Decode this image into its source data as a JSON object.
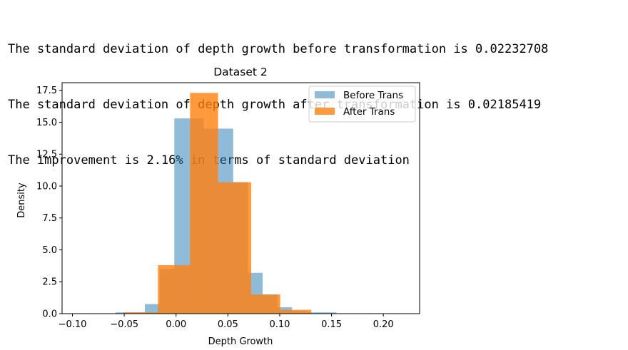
{
  "output": {
    "lines": [
      "The standard deviation of depth growth before transformation is 0.02232708",
      "The standard deviation of depth growth after transformation is 0.02185419",
      "The improvement is 2.16% in terms of standard deviation"
    ]
  },
  "chart_data": {
    "type": "bar",
    "title": "Dataset 2",
    "xlabel": "Depth Growth",
    "ylabel": "Density",
    "xlim": [
      -0.11,
      0.235
    ],
    "ylim": [
      0,
      18.1
    ],
    "xticks": [
      -0.1,
      -0.05,
      0.0,
      0.05,
      0.1,
      0.15,
      0.2
    ],
    "xtick_labels": [
      "−0.10",
      "−0.05",
      "0.00",
      "0.05",
      "0.10",
      "0.15",
      "0.20"
    ],
    "yticks": [
      0.0,
      2.5,
      5.0,
      7.5,
      10.0,
      12.5,
      15.0,
      17.5
    ],
    "ytick_labels": [
      "0.0",
      "2.5",
      "5.0",
      "7.5",
      "10.0",
      "12.5",
      "15.0",
      "17.5"
    ],
    "grid": false,
    "legend_position": "top-right",
    "series": [
      {
        "name": "Before Trans",
        "color": "#1f77b4",
        "alpha": 0.5,
        "bins": [
          {
            "x0": -0.0585,
            "x1": -0.0443,
            "y": 0.1
          },
          {
            "x0": -0.0443,
            "x1": -0.0301,
            "y": 0.1
          },
          {
            "x0": -0.0301,
            "x1": -0.0159,
            "y": 0.75
          },
          {
            "x0": -0.0159,
            "x1": -0.0017,
            "y": 3.5
          },
          {
            "x0": -0.0017,
            "x1": 0.0125,
            "y": 15.3
          },
          {
            "x0": 0.0125,
            "x1": 0.0267,
            "y": 15.3
          },
          {
            "x0": 0.0267,
            "x1": 0.0409,
            "y": 14.5
          },
          {
            "x0": 0.0409,
            "x1": 0.0551,
            "y": 14.5
          },
          {
            "x0": 0.0551,
            "x1": 0.0693,
            "y": 10.3
          },
          {
            "x0": 0.0693,
            "x1": 0.0835,
            "y": 3.2
          },
          {
            "x0": 0.0835,
            "x1": 0.0977,
            "y": 1.5
          },
          {
            "x0": 0.0977,
            "x1": 0.1119,
            "y": 0.5
          },
          {
            "x0": 0.1119,
            "x1": 0.1261,
            "y": 0.2
          },
          {
            "x0": 0.1261,
            "x1": 0.1403,
            "y": 0.1
          },
          {
            "x0": 0.1403,
            "x1": 0.1545,
            "y": 0.1
          }
        ]
      },
      {
        "name": "After Trans",
        "color": "#ff7f0e",
        "alpha": 0.8,
        "bins": [
          {
            "x0": -0.0505,
            "x1": -0.0355,
            "y": 0.1
          },
          {
            "x0": -0.0355,
            "x1": -0.0175,
            "y": 0.1
          },
          {
            "x0": -0.0175,
            "x1": -0.0015,
            "y": 3.8
          },
          {
            "x0": -0.0015,
            "x1": 0.0135,
            "y": 3.8
          },
          {
            "x0": 0.0135,
            "x1": 0.0285,
            "y": 17.3
          },
          {
            "x0": 0.0285,
            "x1": 0.0405,
            "y": 17.3
          },
          {
            "x0": 0.0405,
            "x1": 0.0565,
            "y": 10.3
          },
          {
            "x0": 0.0565,
            "x1": 0.0725,
            "y": 10.3
          },
          {
            "x0": 0.0725,
            "x1": 0.0865,
            "y": 1.5
          },
          {
            "x0": 0.0865,
            "x1": 0.1005,
            "y": 1.5
          },
          {
            "x0": 0.1005,
            "x1": 0.1155,
            "y": 0.3
          },
          {
            "x0": 0.1155,
            "x1": 0.1305,
            "y": 0.3
          }
        ]
      }
    ]
  }
}
